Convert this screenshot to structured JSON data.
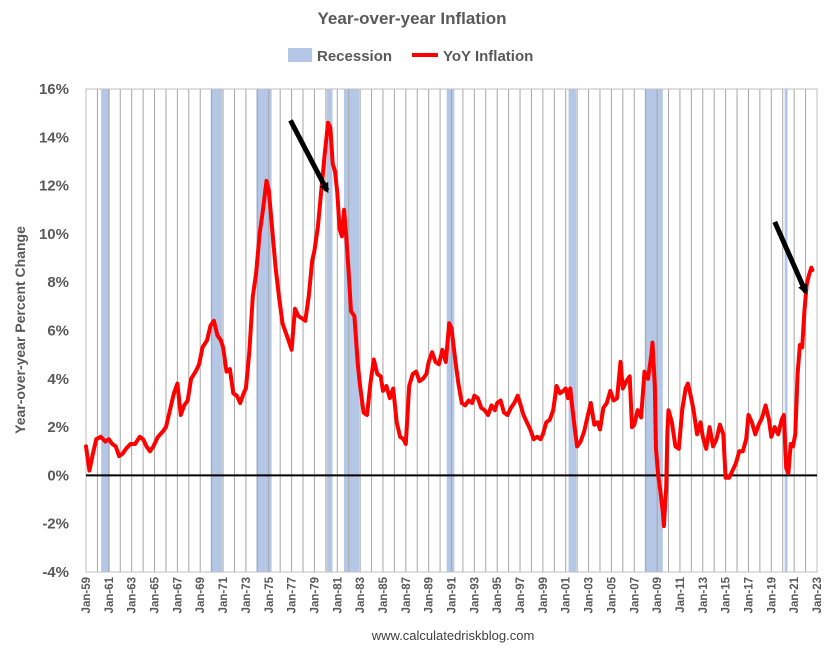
{
  "chart_data": {
    "type": "line",
    "title": "Year-over-year Inflation",
    "ylabel": "Year-over-year Percent Change",
    "xlabel": "",
    "ylim": [
      -4,
      16
    ],
    "yticks": [
      "16%",
      "14%",
      "12%",
      "10%",
      "8%",
      "6%",
      "4%",
      "2%",
      "0%",
      "-2%",
      "-4%"
    ],
    "yticks_values": [
      16,
      14,
      12,
      10,
      8,
      6,
      4,
      2,
      0,
      -2,
      -4
    ],
    "xlim": [
      1959,
      2023
    ],
    "xticks": [
      "Jan-59",
      "Jan-61",
      "Jan-63",
      "Jan-65",
      "Jan-67",
      "Jan-69",
      "Jan-71",
      "Jan-73",
      "Jan-75",
      "Jan-77",
      "Jan-79",
      "Jan-81",
      "Jan-83",
      "Jan-85",
      "Jan-87",
      "Jan-89",
      "Jan-91",
      "Jan-93",
      "Jan-95",
      "Jan-97",
      "Jan-99",
      "Jan-01",
      "Jan-03",
      "Jan-05",
      "Jan-07",
      "Jan-09",
      "Jan-11",
      "Jan-13",
      "Jan-15",
      "Jan-17",
      "Jan-19",
      "Jan-21",
      "Jan-23"
    ],
    "grid": "vertical-yearly",
    "legend_position": "top",
    "legend": [
      {
        "name": "Recession",
        "color": "#b4c7e7",
        "kind": "patch"
      },
      {
        "name": "YoY Inflation",
        "color": "#ff0000",
        "kind": "line"
      }
    ],
    "recessions": [
      [
        1960.33,
        1961.08
      ],
      [
        1969.92,
        1970.92
      ],
      [
        1973.92,
        1975.25
      ],
      [
        1980.08,
        1980.58
      ],
      [
        1981.58,
        1982.92
      ],
      [
        1990.58,
        1991.25
      ],
      [
        2001.25,
        2001.92
      ],
      [
        2007.92,
        2009.5
      ],
      [
        2020.17,
        2020.42
      ]
    ],
    "series": [
      {
        "name": "YoY Inflation",
        "color": "#ff0000",
        "points": [
          [
            1959.0,
            1.2
          ],
          [
            1959.3,
            0.2
          ],
          [
            1959.6,
            0.9
          ],
          [
            1959.9,
            1.5
          ],
          [
            1960.3,
            1.6
          ],
          [
            1960.7,
            1.4
          ],
          [
            1961.0,
            1.5
          ],
          [
            1961.3,
            1.3
          ],
          [
            1961.6,
            1.2
          ],
          [
            1961.9,
            0.8
          ],
          [
            1962.2,
            0.9
          ],
          [
            1962.5,
            1.1
          ],
          [
            1962.9,
            1.3
          ],
          [
            1963.3,
            1.3
          ],
          [
            1963.7,
            1.6
          ],
          [
            1964.0,
            1.5
          ],
          [
            1964.3,
            1.2
          ],
          [
            1964.6,
            1.0
          ],
          [
            1964.9,
            1.2
          ],
          [
            1965.3,
            1.6
          ],
          [
            1965.7,
            1.8
          ],
          [
            1966.0,
            2.0
          ],
          [
            1966.4,
            2.8
          ],
          [
            1966.7,
            3.4
          ],
          [
            1967.0,
            3.8
          ],
          [
            1967.3,
            2.5
          ],
          [
            1967.6,
            2.9
          ],
          [
            1967.9,
            3.1
          ],
          [
            1968.2,
            4.0
          ],
          [
            1968.6,
            4.3
          ],
          [
            1968.9,
            4.6
          ],
          [
            1969.2,
            5.3
          ],
          [
            1969.6,
            5.6
          ],
          [
            1969.9,
            6.2
          ],
          [
            1970.2,
            6.4
          ],
          [
            1970.5,
            5.8
          ],
          [
            1970.8,
            5.6
          ],
          [
            1971.0,
            5.3
          ],
          [
            1971.3,
            4.3
          ],
          [
            1971.6,
            4.4
          ],
          [
            1971.9,
            3.4
          ],
          [
            1972.2,
            3.3
          ],
          [
            1972.5,
            3.0
          ],
          [
            1972.8,
            3.4
          ],
          [
            1973.0,
            3.6
          ],
          [
            1973.3,
            5.1
          ],
          [
            1973.6,
            7.4
          ],
          [
            1973.9,
            8.4
          ],
          [
            1974.2,
            10.0
          ],
          [
            1974.5,
            11.0
          ],
          [
            1974.8,
            12.2
          ],
          [
            1975.0,
            11.8
          ],
          [
            1975.3,
            10.2
          ],
          [
            1975.6,
            8.6
          ],
          [
            1975.9,
            7.4
          ],
          [
            1976.2,
            6.3
          ],
          [
            1976.5,
            5.9
          ],
          [
            1976.8,
            5.5
          ],
          [
            1977.0,
            5.2
          ],
          [
            1977.3,
            6.9
          ],
          [
            1977.6,
            6.6
          ],
          [
            1977.9,
            6.5
          ],
          [
            1978.2,
            6.4
          ],
          [
            1978.5,
            7.4
          ],
          [
            1978.8,
            8.9
          ],
          [
            1979.0,
            9.3
          ],
          [
            1979.3,
            10.3
          ],
          [
            1979.6,
            11.8
          ],
          [
            1979.9,
            13.3
          ],
          [
            1980.2,
            14.6
          ],
          [
            1980.4,
            14.4
          ],
          [
            1980.6,
            12.9
          ],
          [
            1980.8,
            12.6
          ],
          [
            1981.0,
            11.7
          ],
          [
            1981.2,
            10.2
          ],
          [
            1981.4,
            9.9
          ],
          [
            1981.6,
            11.0
          ],
          [
            1981.8,
            9.8
          ],
          [
            1982.0,
            8.4
          ],
          [
            1982.2,
            6.8
          ],
          [
            1982.5,
            6.6
          ],
          [
            1982.8,
            4.6
          ],
          [
            1983.0,
            3.7
          ],
          [
            1983.3,
            2.6
          ],
          [
            1983.6,
            2.5
          ],
          [
            1983.9,
            3.8
          ],
          [
            1984.2,
            4.8
          ],
          [
            1984.5,
            4.2
          ],
          [
            1984.8,
            4.1
          ],
          [
            1985.0,
            3.5
          ],
          [
            1985.3,
            3.7
          ],
          [
            1985.6,
            3.2
          ],
          [
            1985.9,
            3.6
          ],
          [
            1986.2,
            2.2
          ],
          [
            1986.5,
            1.6
          ],
          [
            1986.8,
            1.5
          ],
          [
            1987.0,
            1.3
          ],
          [
            1987.3,
            3.7
          ],
          [
            1987.6,
            4.2
          ],
          [
            1987.9,
            4.3
          ],
          [
            1988.2,
            3.9
          ],
          [
            1988.5,
            4.0
          ],
          [
            1988.8,
            4.2
          ],
          [
            1989.0,
            4.7
          ],
          [
            1989.3,
            5.1
          ],
          [
            1989.6,
            4.7
          ],
          [
            1989.9,
            4.6
          ],
          [
            1990.2,
            5.2
          ],
          [
            1990.5,
            4.7
          ],
          [
            1990.8,
            6.3
          ],
          [
            1991.0,
            6.1
          ],
          [
            1991.3,
            4.9
          ],
          [
            1991.6,
            3.8
          ],
          [
            1991.9,
            3.0
          ],
          [
            1992.2,
            2.9
          ],
          [
            1992.5,
            3.1
          ],
          [
            1992.8,
            3.0
          ],
          [
            1993.0,
            3.3
          ],
          [
            1993.3,
            3.2
          ],
          [
            1993.6,
            2.8
          ],
          [
            1993.9,
            2.7
          ],
          [
            1994.2,
            2.5
          ],
          [
            1994.5,
            2.9
          ],
          [
            1994.8,
            2.7
          ],
          [
            1995.0,
            3.0
          ],
          [
            1995.3,
            3.1
          ],
          [
            1995.6,
            2.6
          ],
          [
            1995.9,
            2.5
          ],
          [
            1996.2,
            2.8
          ],
          [
            1996.5,
            3.0
          ],
          [
            1996.8,
            3.3
          ],
          [
            1997.0,
            3.0
          ],
          [
            1997.3,
            2.5
          ],
          [
            1997.6,
            2.2
          ],
          [
            1997.9,
            1.9
          ],
          [
            1998.2,
            1.5
          ],
          [
            1998.5,
            1.6
          ],
          [
            1998.8,
            1.5
          ],
          [
            1999.0,
            1.7
          ],
          [
            1999.3,
            2.2
          ],
          [
            1999.6,
            2.3
          ],
          [
            1999.9,
            2.7
          ],
          [
            2000.2,
            3.7
          ],
          [
            2000.5,
            3.4
          ],
          [
            2000.8,
            3.5
          ],
          [
            2001.0,
            3.6
          ],
          [
            2001.2,
            3.2
          ],
          [
            2001.4,
            3.6
          ],
          [
            2001.6,
            2.7
          ],
          [
            2001.8,
            1.9
          ],
          [
            2002.0,
            1.2
          ],
          [
            2002.3,
            1.4
          ],
          [
            2002.6,
            1.8
          ],
          [
            2002.9,
            2.4
          ],
          [
            2003.2,
            3.0
          ],
          [
            2003.5,
            2.1
          ],
          [
            2003.8,
            2.2
          ],
          [
            2004.0,
            1.9
          ],
          [
            2004.3,
            2.8
          ],
          [
            2004.6,
            3.0
          ],
          [
            2004.9,
            3.5
          ],
          [
            2005.2,
            3.1
          ],
          [
            2005.5,
            3.2
          ],
          [
            2005.8,
            4.7
          ],
          [
            2006.0,
            3.6
          ],
          [
            2006.3,
            3.9
          ],
          [
            2006.6,
            4.1
          ],
          [
            2006.8,
            2.0
          ],
          [
            2007.0,
            2.1
          ],
          [
            2007.3,
            2.7
          ],
          [
            2007.6,
            2.4
          ],
          [
            2007.9,
            4.3
          ],
          [
            2008.2,
            4.0
          ],
          [
            2008.5,
            5.0
          ],
          [
            2008.6,
            5.5
          ],
          [
            2008.8,
            3.7
          ],
          [
            2008.9,
            1.1
          ],
          [
            2009.1,
            0.0
          ],
          [
            2009.3,
            -0.7
          ],
          [
            2009.5,
            -1.5
          ],
          [
            2009.6,
            -2.1
          ],
          [
            2009.8,
            -0.5
          ],
          [
            2009.9,
            1.8
          ],
          [
            2010.0,
            2.7
          ],
          [
            2010.3,
            2.2
          ],
          [
            2010.6,
            1.2
          ],
          [
            2010.9,
            1.1
          ],
          [
            2011.2,
            2.7
          ],
          [
            2011.5,
            3.6
          ],
          [
            2011.7,
            3.8
          ],
          [
            2011.9,
            3.4
          ],
          [
            2012.2,
            2.7
          ],
          [
            2012.5,
            1.7
          ],
          [
            2012.8,
            2.2
          ],
          [
            2013.0,
            1.6
          ],
          [
            2013.3,
            1.1
          ],
          [
            2013.6,
            2.0
          ],
          [
            2013.9,
            1.2
          ],
          [
            2014.2,
            1.5
          ],
          [
            2014.5,
            2.1
          ],
          [
            2014.8,
            1.7
          ],
          [
            2015.0,
            -0.1
          ],
          [
            2015.3,
            -0.1
          ],
          [
            2015.6,
            0.2
          ],
          [
            2015.9,
            0.5
          ],
          [
            2016.2,
            1.0
          ],
          [
            2016.5,
            1.0
          ],
          [
            2016.8,
            1.5
          ],
          [
            2017.0,
            2.5
          ],
          [
            2017.3,
            2.2
          ],
          [
            2017.6,
            1.7
          ],
          [
            2017.9,
            2.1
          ],
          [
            2018.2,
            2.4
          ],
          [
            2018.5,
            2.9
          ],
          [
            2018.8,
            2.3
          ],
          [
            2019.0,
            1.6
          ],
          [
            2019.3,
            2.0
          ],
          [
            2019.6,
            1.7
          ],
          [
            2019.9,
            2.3
          ],
          [
            2020.1,
            2.5
          ],
          [
            2020.3,
            0.3
          ],
          [
            2020.5,
            0.1
          ],
          [
            2020.7,
            1.3
          ],
          [
            2020.9,
            1.2
          ],
          [
            2021.1,
            1.7
          ],
          [
            2021.3,
            4.2
          ],
          [
            2021.5,
            5.4
          ],
          [
            2021.7,
            5.3
          ],
          [
            2021.9,
            6.8
          ],
          [
            2022.1,
            7.9
          ],
          [
            2022.3,
            8.3
          ],
          [
            2022.5,
            8.6
          ],
          [
            2022.6,
            8.5
          ]
        ]
      }
    ],
    "annotations": [
      {
        "type": "arrow",
        "from": [
          1976.9,
          14.7
        ],
        "to": [
          1980.1,
          11.8
        ]
      },
      {
        "type": "arrow",
        "from": [
          2019.3,
          10.5
        ],
        "to": [
          2022.0,
          7.6
        ]
      }
    ],
    "footer": "www.calculatedriskblog.com"
  }
}
